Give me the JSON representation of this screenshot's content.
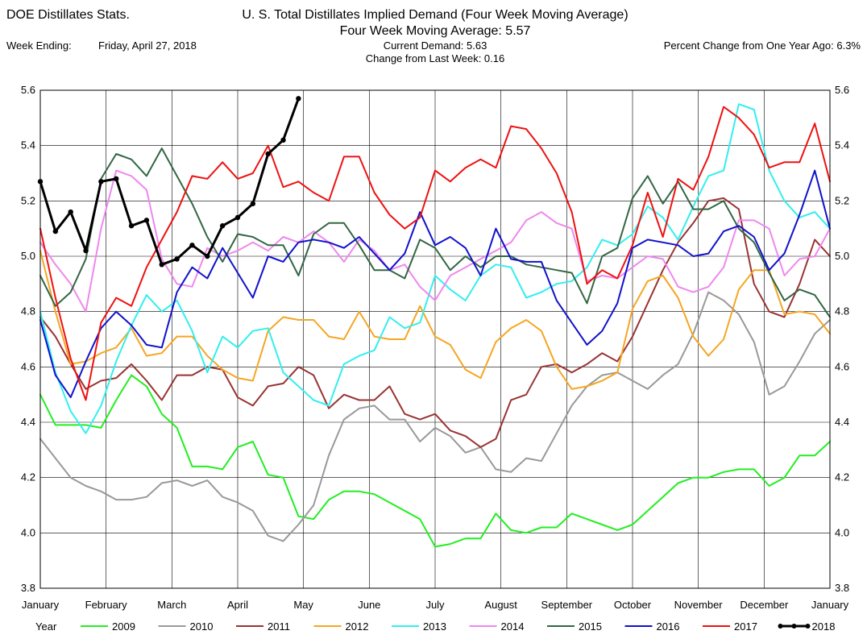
{
  "header": {
    "source_title": "DOE Distillates Stats.",
    "title": "U. S. Total Distillates Implied Demand  (Four Week Moving Average)",
    "subtitle": "Four Week Moving Average:  5.57",
    "week_ending_label": "Week Ending:",
    "week_ending_value": "Friday, April 27, 2018",
    "current_demand": "Current Demand:  5.63",
    "change_last_week": "Change from Last Week:  0.16",
    "pct_change": "Percent Change from One Year Ago:  6.3%"
  },
  "legend": {
    "label": "Year"
  },
  "chart_data": {
    "type": "line",
    "ylim": [
      3.8,
      5.6
    ],
    "y_ticks": [
      "3.8",
      "4.0",
      "4.2",
      "4.4",
      "4.6",
      "4.8",
      "5.0",
      "5.2",
      "5.4",
      "5.6"
    ],
    "x_month_labels": [
      "January",
      "February",
      "March",
      "April",
      "May",
      "June",
      "July",
      "August",
      "September",
      "October",
      "November",
      "December",
      "January"
    ],
    "x_unit": "week of year (1-53)",
    "grid": true,
    "legend_position": "bottom",
    "series": [
      {
        "name": "2009",
        "color": "#22ee22",
        "width": 2,
        "markers": false,
        "values": [
          4.5,
          4.39,
          4.39,
          4.39,
          4.38,
          4.48,
          4.57,
          4.53,
          4.43,
          4.38,
          4.24,
          4.24,
          4.23,
          4.31,
          4.33,
          4.21,
          4.2,
          4.06,
          4.05,
          4.12,
          4.15,
          4.15,
          4.14,
          4.11,
          4.08,
          4.05,
          3.95,
          3.96,
          3.98,
          3.98,
          4.07,
          4.01,
          4.0,
          4.02,
          4.02,
          4.07,
          4.05,
          4.03,
          4.01,
          4.03,
          4.08,
          4.13,
          4.18,
          4.2,
          4.2,
          4.22,
          4.23,
          4.23,
          4.17,
          4.2,
          4.28,
          4.28,
          4.33
        ]
      },
      {
        "name": "2010",
        "color": "#999999",
        "width": 2,
        "markers": false,
        "values": [
          4.34,
          4.27,
          4.2,
          4.17,
          4.15,
          4.12,
          4.12,
          4.13,
          4.18,
          4.19,
          4.17,
          4.19,
          4.13,
          4.11,
          4.08,
          3.99,
          3.97,
          4.03,
          4.1,
          4.28,
          4.41,
          4.45,
          4.46,
          4.41,
          4.41,
          4.33,
          4.38,
          4.35,
          4.29,
          4.31,
          4.23,
          4.22,
          4.27,
          4.26,
          4.36,
          4.46,
          4.53,
          4.57,
          4.58,
          4.55,
          4.52,
          4.57,
          4.61,
          4.72,
          4.87,
          4.84,
          4.79,
          4.69,
          4.5,
          4.53,
          4.62,
          4.72,
          4.77
        ]
      },
      {
        "name": "2011",
        "color": "#993333",
        "width": 2,
        "markers": false,
        "values": [
          4.78,
          4.71,
          4.61,
          4.52,
          4.55,
          4.56,
          4.61,
          4.55,
          4.48,
          4.57,
          4.57,
          4.6,
          4.59,
          4.49,
          4.46,
          4.53,
          4.54,
          4.6,
          4.57,
          4.45,
          4.5,
          4.48,
          4.48,
          4.53,
          4.43,
          4.41,
          4.43,
          4.37,
          4.35,
          4.31,
          4.34,
          4.48,
          4.5,
          4.6,
          4.61,
          4.58,
          4.61,
          4.65,
          4.62,
          4.71,
          4.83,
          4.95,
          5.05,
          5.12,
          5.2,
          5.21,
          5.17,
          4.9,
          4.8,
          4.78,
          4.9,
          5.06,
          5.0
        ]
      },
      {
        "name": "2012",
        "color": "#f5a623",
        "width": 2,
        "markers": false,
        "values": [
          5.02,
          4.8,
          4.61,
          4.62,
          4.65,
          4.67,
          4.74,
          4.64,
          4.65,
          4.71,
          4.71,
          4.64,
          4.59,
          4.56,
          4.55,
          4.73,
          4.78,
          4.77,
          4.77,
          4.71,
          4.7,
          4.8,
          4.71,
          4.7,
          4.7,
          4.82,
          4.71,
          4.68,
          4.59,
          4.56,
          4.69,
          4.74,
          4.77,
          4.73,
          4.6,
          4.52,
          4.53,
          4.55,
          4.58,
          4.81,
          4.91,
          4.93,
          4.85,
          4.71,
          4.64,
          4.7,
          4.88,
          4.95,
          4.95,
          4.79,
          4.8,
          4.79,
          4.72
        ]
      },
      {
        "name": "2013",
        "color": "#33eeee",
        "width": 2,
        "markers": false,
        "values": [
          4.8,
          4.58,
          4.44,
          4.36,
          4.46,
          4.62,
          4.75,
          4.86,
          4.8,
          4.84,
          4.73,
          4.58,
          4.71,
          4.67,
          4.73,
          4.74,
          4.58,
          4.53,
          4.48,
          4.46,
          4.61,
          4.64,
          4.66,
          4.78,
          4.74,
          4.76,
          4.93,
          4.88,
          4.84,
          4.93,
          4.97,
          4.96,
          4.85,
          4.87,
          4.9,
          4.91,
          4.96,
          5.06,
          5.04,
          5.08,
          5.18,
          5.14,
          5.06,
          5.18,
          5.29,
          5.31,
          5.55,
          5.53,
          5.31,
          5.2,
          5.14,
          5.16,
          5.1
        ]
      },
      {
        "name": "2014",
        "color": "#ee88ee",
        "width": 2,
        "markers": false,
        "values": [
          5.05,
          4.97,
          4.9,
          4.8,
          5.1,
          5.31,
          5.29,
          5.24,
          4.99,
          4.9,
          4.89,
          5.03,
          5.0,
          5.02,
          5.05,
          5.02,
          5.07,
          5.05,
          5.09,
          5.05,
          4.98,
          5.06,
          5.02,
          4.95,
          4.97,
          4.89,
          4.84,
          4.93,
          4.96,
          4.99,
          5.02,
          5.05,
          5.13,
          5.16,
          5.12,
          5.1,
          4.91,
          4.93,
          4.92,
          4.96,
          5.0,
          4.99,
          4.89,
          4.87,
          4.89,
          4.96,
          5.13,
          5.13,
          5.1,
          4.93,
          4.99,
          5.0,
          5.1
        ]
      },
      {
        "name": "2015",
        "color": "#336644",
        "width": 2,
        "markers": false,
        "values": [
          4.93,
          4.82,
          4.87,
          4.99,
          5.28,
          5.37,
          5.35,
          5.29,
          5.39,
          5.29,
          5.19,
          5.07,
          4.98,
          5.08,
          5.07,
          5.04,
          5.04,
          4.93,
          5.08,
          5.12,
          5.12,
          5.04,
          4.95,
          4.95,
          4.92,
          5.06,
          5.03,
          4.95,
          5.0,
          4.96,
          5.0,
          5.0,
          4.97,
          4.96,
          4.95,
          4.94,
          4.83,
          5.0,
          5.03,
          5.21,
          5.29,
          5.19,
          5.27,
          5.17,
          5.17,
          5.2,
          5.1,
          5.05,
          4.94,
          4.84,
          4.88,
          4.86,
          4.78
        ]
      },
      {
        "name": "2016",
        "color": "#1111cc",
        "width": 2,
        "markers": false,
        "values": [
          4.77,
          4.57,
          4.49,
          4.62,
          4.74,
          4.8,
          4.75,
          4.68,
          4.67,
          4.87,
          4.96,
          4.92,
          5.03,
          4.94,
          4.85,
          5.0,
          4.98,
          5.05,
          5.06,
          5.05,
          5.03,
          5.07,
          5.01,
          4.95,
          5.01,
          5.16,
          5.04,
          5.07,
          5.03,
          4.93,
          5.1,
          4.99,
          4.98,
          4.98,
          4.84,
          4.76,
          4.68,
          4.73,
          4.83,
          5.03,
          5.06,
          5.05,
          5.04,
          5.0,
          5.01,
          5.09,
          5.11,
          5.07,
          4.95,
          5.01,
          5.15,
          5.31,
          5.1
        ]
      },
      {
        "name": "2017",
        "color": "#ee1111",
        "width": 2,
        "markers": false,
        "values": [
          5.1,
          4.85,
          4.63,
          4.48,
          4.76,
          4.85,
          4.82,
          4.96,
          5.06,
          5.16,
          5.29,
          5.28,
          5.34,
          5.28,
          5.3,
          5.4,
          5.25,
          5.27,
          5.23,
          5.2,
          5.36,
          5.36,
          5.23,
          5.15,
          5.1,
          5.14,
          5.31,
          5.27,
          5.32,
          5.35,
          5.32,
          5.47,
          5.46,
          5.39,
          5.3,
          5.16,
          4.9,
          4.95,
          4.92,
          5.04,
          5.23,
          5.07,
          5.28,
          5.24,
          5.36,
          5.54,
          5.5,
          5.44,
          5.32,
          5.34,
          5.34,
          5.48,
          5.27
        ]
      },
      {
        "name": "2018",
        "color": "#000000",
        "width": 3,
        "markers": true,
        "values": [
          5.27,
          5.09,
          5.16,
          5.02,
          5.27,
          5.28,
          5.11,
          5.13,
          4.97,
          4.99,
          5.04,
          5.0,
          5.11,
          5.14,
          5.19,
          5.37,
          5.42,
          5.57
        ]
      }
    ]
  }
}
